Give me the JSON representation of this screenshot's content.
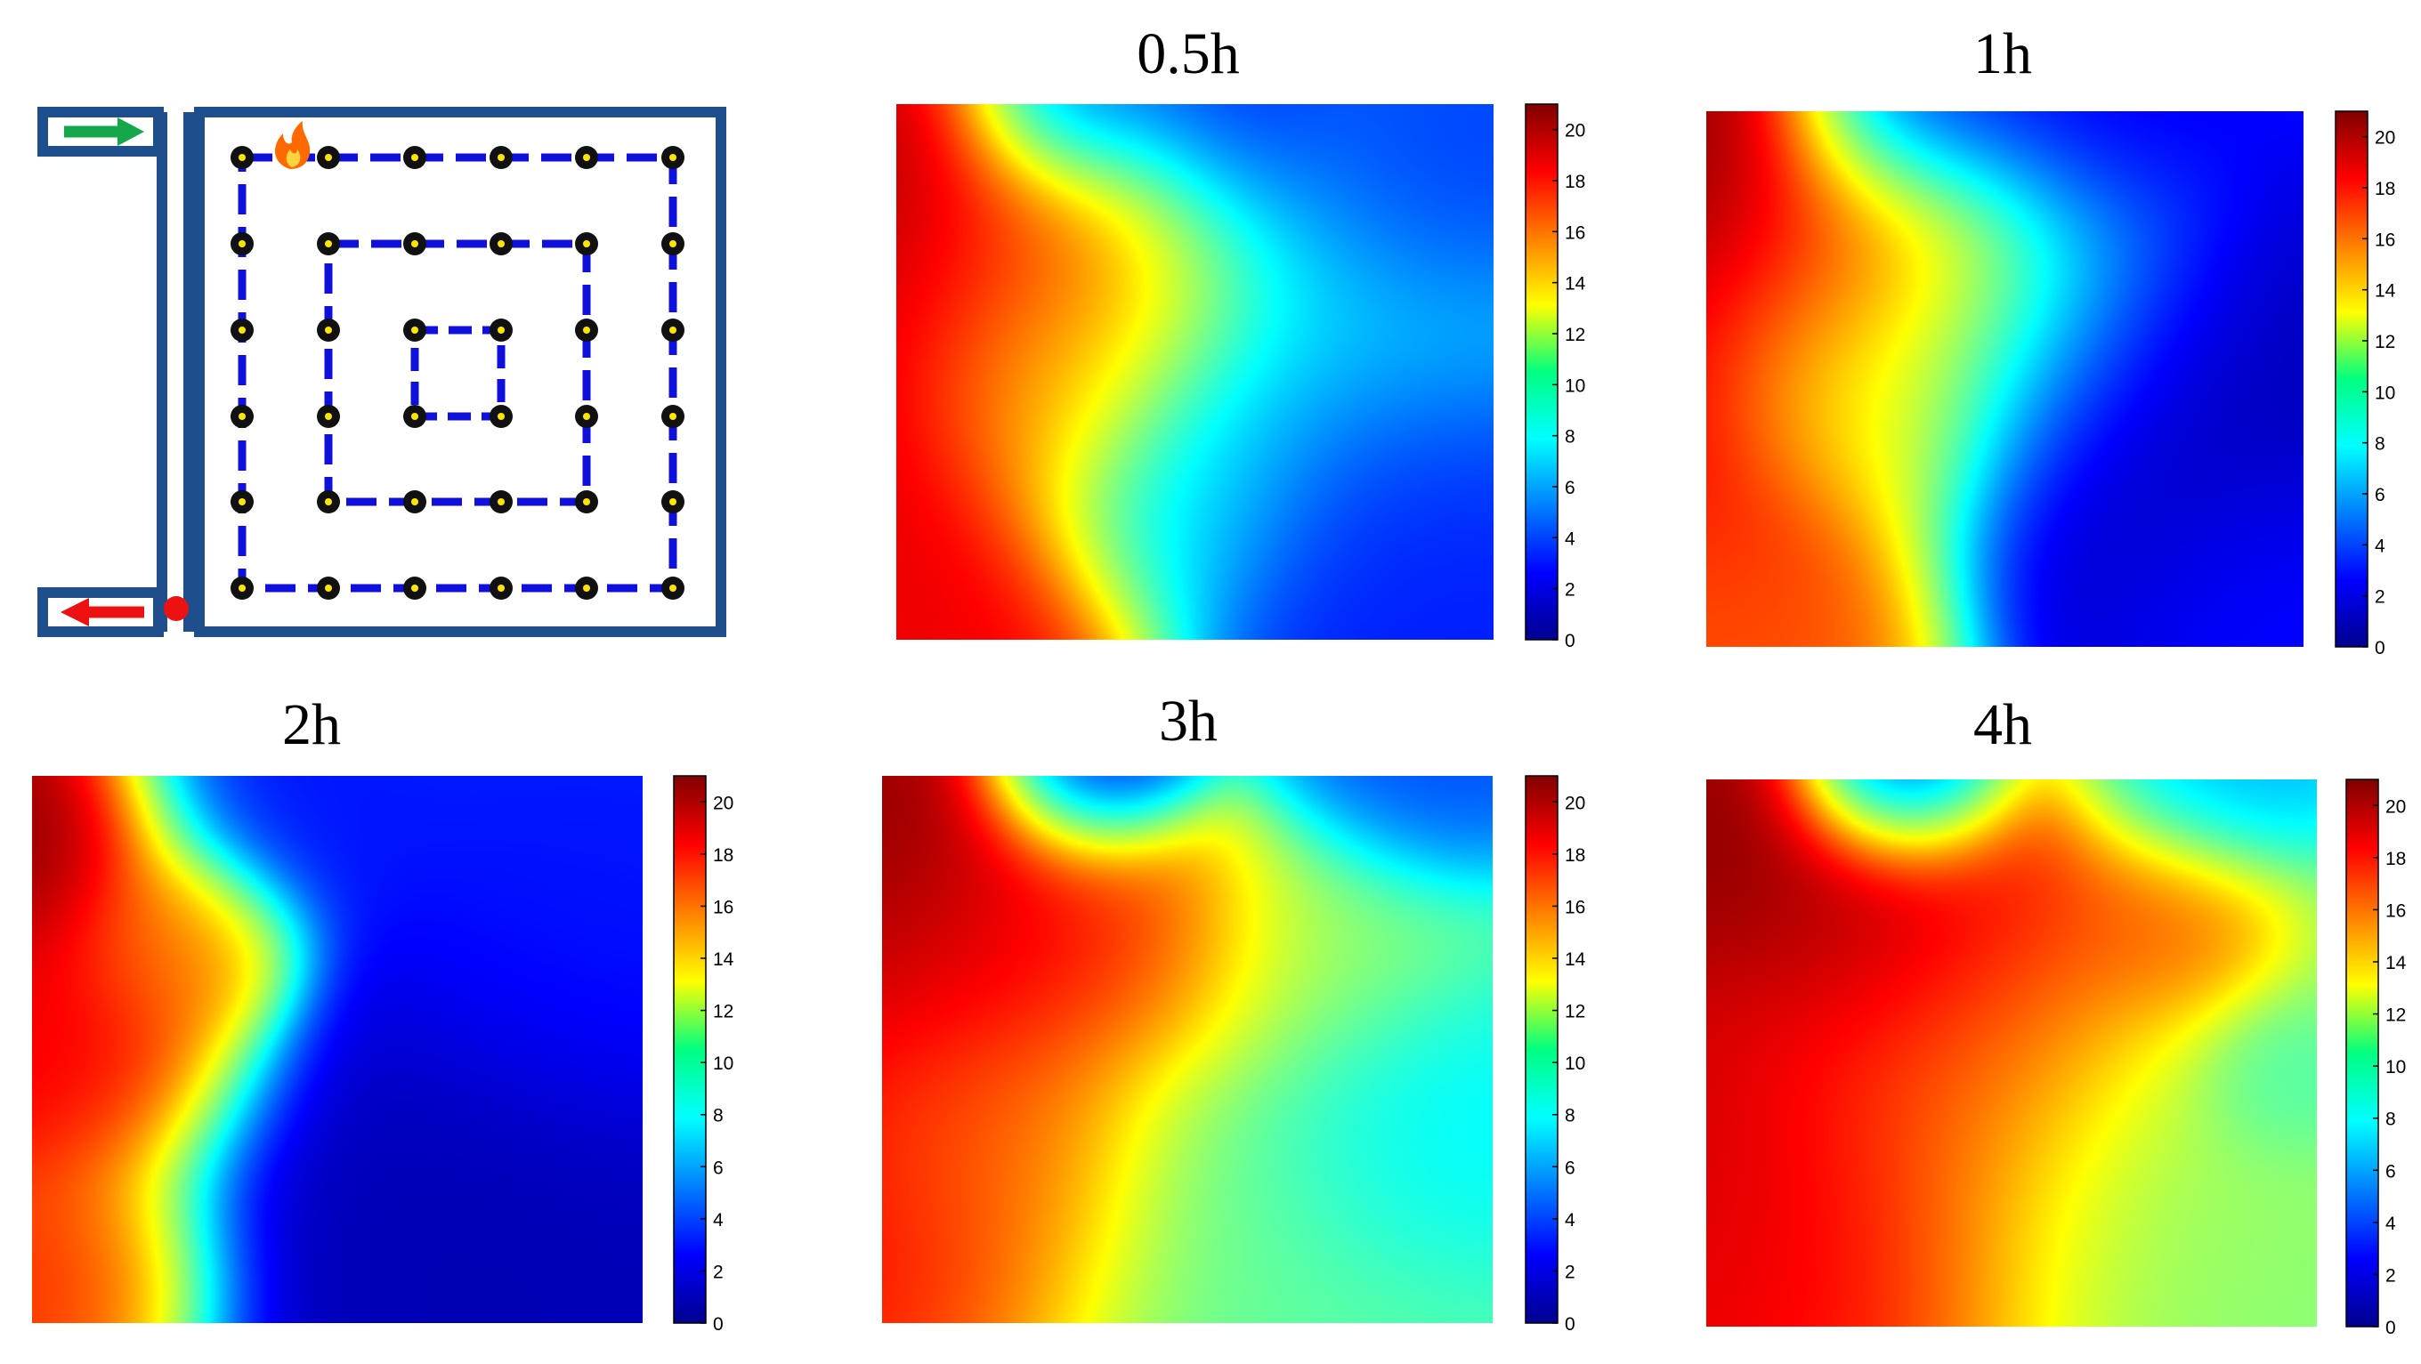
{
  "colors": {
    "pipe": "#1f4e8c",
    "loop": "#1010dd",
    "node": "#111111",
    "node_center": "#ffe600",
    "inlet_arrow": "#14a84a",
    "outlet_arrow": "#ee1111",
    "fire": "#ff6a00"
  },
  "icons": {
    "inlet": "arrow-right-icon",
    "outlet": "arrow-left-icon",
    "outlet_marker": "red-dot-icon",
    "heat_source": "flame-icon"
  },
  "chart_data": [
    {
      "type": "heatmap",
      "title": "0.5h",
      "colorbar": {
        "range": [
          0,
          21
        ],
        "ticks": [
          "20",
          "18",
          "16",
          "14",
          "12",
          "10",
          "8",
          "6",
          "4",
          "2",
          "0"
        ]
      },
      "hot_blobs": [
        {
          "x": 0.0,
          "y": 0.15,
          "s": 0.18,
          "v": 21
        },
        {
          "x": 0.07,
          "y": 0.55,
          "s": 0.2,
          "v": 20
        },
        {
          "x": 0.1,
          "y": 0.95,
          "s": 0.17,
          "v": 19
        },
        {
          "x": 0.32,
          "y": 0.28,
          "s": 0.16,
          "v": 19
        },
        {
          "x": 0.25,
          "y": 0.55,
          "s": 0.12,
          "v": 14
        },
        {
          "x": 0.45,
          "y": 0.72,
          "s": 0.14,
          "v": 7
        },
        {
          "x": 0.6,
          "y": 0.3,
          "s": 0.3,
          "v": 7
        }
      ],
      "cool_blobs": [
        {
          "x": 0.3,
          "y": 0.0,
          "s": 0.1,
          "v": 3
        },
        {
          "x": 0.55,
          "y": 0.0,
          "s": 0.14,
          "v": 2
        },
        {
          "x": 0.9,
          "y": 0.1,
          "s": 0.15,
          "v": 3
        },
        {
          "x": 0.85,
          "y": 0.85,
          "s": 0.2,
          "v": 3
        }
      ]
    },
    {
      "type": "heatmap",
      "title": "1h",
      "colorbar": {
        "range": [
          0,
          21
        ],
        "ticks": [
          "20",
          "18",
          "16",
          "14",
          "12",
          "10",
          "8",
          "6",
          "4",
          "2",
          "0"
        ]
      },
      "hot_blobs": [
        {
          "x": 0.0,
          "y": 0.1,
          "s": 0.18,
          "v": 21
        },
        {
          "x": 0.06,
          "y": 0.55,
          "s": 0.2,
          "v": 19
        },
        {
          "x": 0.05,
          "y": 0.95,
          "s": 0.17,
          "v": 17
        },
        {
          "x": 0.3,
          "y": 0.28,
          "s": 0.16,
          "v": 19
        },
        {
          "x": 0.25,
          "y": 0.55,
          "s": 0.12,
          "v": 12
        },
        {
          "x": 0.45,
          "y": 0.35,
          "s": 0.2,
          "v": 8
        }
      ],
      "cool_blobs": [
        {
          "x": 0.35,
          "y": 0.0,
          "s": 0.12,
          "v": 2
        },
        {
          "x": 0.6,
          "y": 0.0,
          "s": 0.15,
          "v": 2
        },
        {
          "x": 0.8,
          "y": 0.6,
          "s": 0.25,
          "v": 1
        },
        {
          "x": 0.95,
          "y": 0.9,
          "s": 0.15,
          "v": 3
        }
      ]
    },
    {
      "type": "heatmap",
      "title": "2h",
      "colorbar": {
        "range": [
          0,
          21
        ],
        "ticks": [
          "20",
          "18",
          "16",
          "14",
          "12",
          "10",
          "8",
          "6",
          "4",
          "2",
          "0"
        ]
      },
      "hot_blobs": [
        {
          "x": 0.0,
          "y": 0.1,
          "s": 0.14,
          "v": 21
        },
        {
          "x": 0.04,
          "y": 0.5,
          "s": 0.16,
          "v": 19
        },
        {
          "x": 0.04,
          "y": 0.95,
          "s": 0.14,
          "v": 18
        },
        {
          "x": 0.23,
          "y": 0.3,
          "s": 0.1,
          "v": 16
        }
      ],
      "cool_blobs": [
        {
          "x": 0.4,
          "y": 0.0,
          "s": 0.15,
          "v": 3
        },
        {
          "x": 0.75,
          "y": 0.9,
          "s": 0.3,
          "v": 1
        },
        {
          "x": 0.95,
          "y": 0.3,
          "s": 0.2,
          "v": 3
        }
      ]
    },
    {
      "type": "heatmap",
      "title": "3h",
      "colorbar": {
        "range": [
          0,
          21
        ],
        "ticks": [
          "20",
          "18",
          "16",
          "14",
          "12",
          "10",
          "8",
          "6",
          "4",
          "2",
          "0"
        ]
      },
      "hot_blobs": [
        {
          "x": 0.0,
          "y": 0.12,
          "s": 0.15,
          "v": 21
        },
        {
          "x": 0.1,
          "y": 0.4,
          "s": 0.2,
          "v": 20
        },
        {
          "x": 0.25,
          "y": 0.3,
          "s": 0.15,
          "v": 19
        },
        {
          "x": 0.45,
          "y": 0.3,
          "s": 0.14,
          "v": 18
        },
        {
          "x": 0.05,
          "y": 0.8,
          "s": 0.2,
          "v": 19
        },
        {
          "x": 0.18,
          "y": 0.65,
          "s": 0.14,
          "v": 16
        },
        {
          "x": 0.7,
          "y": 0.3,
          "s": 0.14,
          "v": 11
        },
        {
          "x": 0.6,
          "y": 0.7,
          "s": 0.3,
          "v": 10
        }
      ],
      "cool_blobs": [
        {
          "x": 0.35,
          "y": 0.0,
          "s": 0.1,
          "v": 1
        },
        {
          "x": 0.85,
          "y": 0.0,
          "s": 0.12,
          "v": 4
        },
        {
          "x": 0.9,
          "y": 0.65,
          "s": 0.15,
          "v": 7
        }
      ]
    },
    {
      "type": "heatmap",
      "title": "4h",
      "colorbar": {
        "range": [
          0,
          21
        ],
        "ticks": [
          "20",
          "18",
          "16",
          "14",
          "12",
          "10",
          "8",
          "6",
          "4",
          "2",
          "0"
        ]
      },
      "hot_blobs": [
        {
          "x": 0.0,
          "y": 0.12,
          "s": 0.14,
          "v": 21
        },
        {
          "x": 0.25,
          "y": 0.28,
          "s": 0.14,
          "v": 21
        },
        {
          "x": 0.5,
          "y": 0.25,
          "s": 0.18,
          "v": 19
        },
        {
          "x": 0.75,
          "y": 0.27,
          "s": 0.1,
          "v": 17
        },
        {
          "x": 0.1,
          "y": 0.6,
          "s": 0.25,
          "v": 20
        },
        {
          "x": 0.15,
          "y": 0.9,
          "s": 0.22,
          "v": 19
        },
        {
          "x": 0.4,
          "y": 0.5,
          "s": 0.18,
          "v": 17
        },
        {
          "x": 0.7,
          "y": 0.7,
          "s": 0.3,
          "v": 11
        }
      ],
      "cool_blobs": [
        {
          "x": 0.33,
          "y": 0.0,
          "s": 0.1,
          "v": 1
        },
        {
          "x": 0.8,
          "y": 0.0,
          "s": 0.12,
          "v": 6
        },
        {
          "x": 0.95,
          "y": 0.55,
          "s": 0.08,
          "v": 9
        }
      ]
    }
  ]
}
